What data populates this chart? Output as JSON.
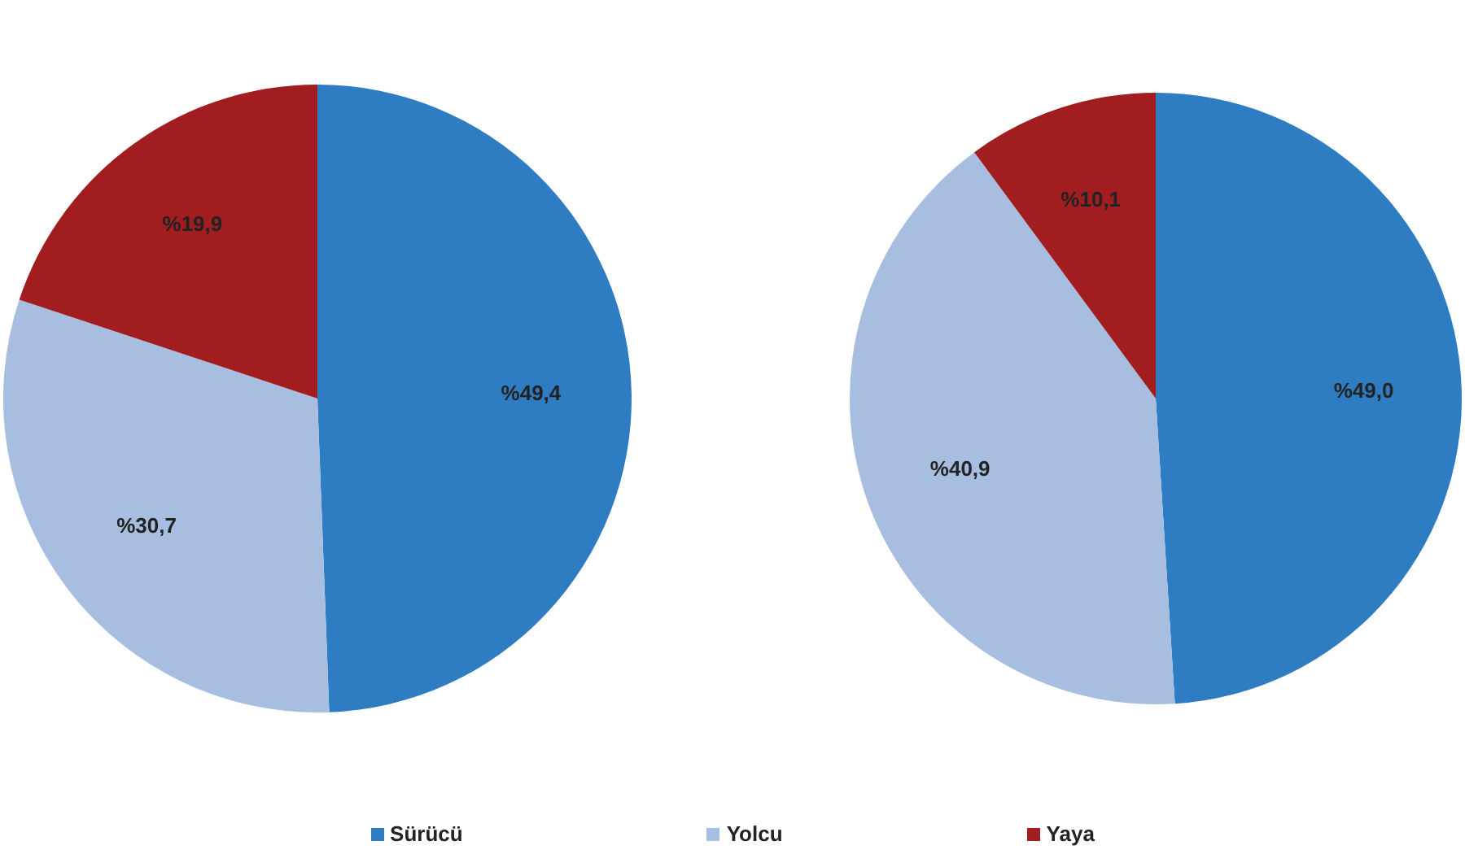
{
  "chart_data": [
    {
      "type": "pie",
      "categories": [
        "Sürücü",
        "Yolcu",
        "Yaya"
      ],
      "values": [
        49.4,
        30.7,
        19.9
      ],
      "value_labels": [
        "%49,4",
        "%30,7",
        "%19,9"
      ],
      "colors": [
        "#2e7dc3",
        "#a7bee0",
        "#a21d1f"
      ],
      "legend": "bottom"
    },
    {
      "type": "pie",
      "categories": [
        null,
        null,
        null
      ],
      "values": [
        49.0,
        40.9,
        10.1
      ],
      "value_labels": [
        "%49,0",
        "%40,9",
        "%10,1"
      ],
      "colors": [
        "#2e7dc3",
        "#a7bee0",
        "#a21d1f"
      ]
    }
  ]
}
